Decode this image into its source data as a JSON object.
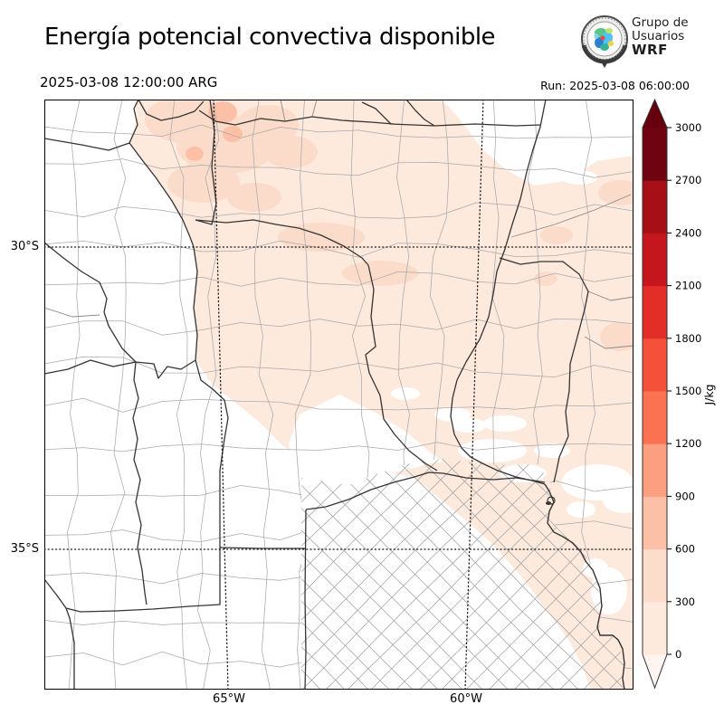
{
  "header": {
    "title": "Energía potencial convectiva disponible",
    "valid_time": "2025-03-08 12:00:00 ARG",
    "run_label": "Run: 2025-03-08 06:00:00",
    "logo": {
      "line1": "Grupo de",
      "line2": "Usuarios",
      "line3": "WRF"
    }
  },
  "map": {
    "y_axis_labels": [
      "30°S",
      "35°S"
    ],
    "x_axis_labels": [
      "65°W",
      "60°W"
    ]
  },
  "colorbar": {
    "unit": "J/kg",
    "ticks": [
      "0",
      "300",
      "600",
      "900",
      "1200",
      "1500",
      "1800",
      "2100",
      "2400",
      "2700",
      "3000"
    ],
    "bin_colors": [
      "#fee9dd",
      "#fcdccb",
      "#fbc0a6",
      "#fc9e80",
      "#fa7252",
      "#f4503a",
      "#e22e27",
      "#c4161c",
      "#a50f15",
      "#6f0410"
    ],
    "under_color": "#fff5f0",
    "over_color": "#67000d"
  },
  "map_fill": {
    "base": "#fee9dd",
    "patch_300_600": "#fbdcca",
    "patch_600_900": "#fbc0a6",
    "no_cape": "#ffffff"
  }
}
